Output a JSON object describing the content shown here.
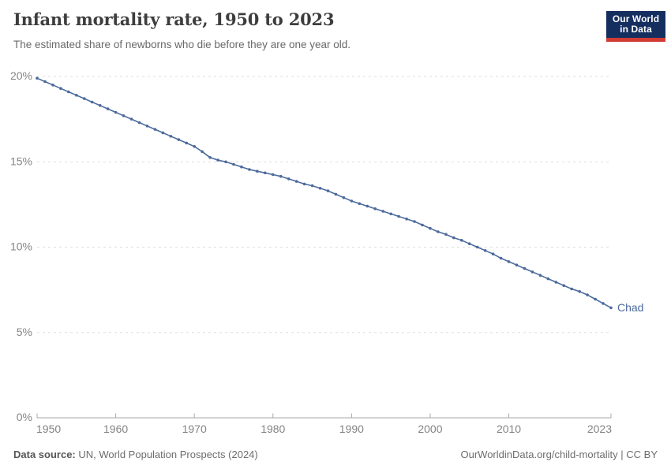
{
  "header": {
    "title": "Infant mortality rate, 1950 to 2023",
    "subtitle": "The estimated share of newborns who die before they are one year old."
  },
  "logo": {
    "line1": "Our World",
    "line2": "in Data",
    "bg_color": "#142e5f",
    "bar_color": "#d23b33"
  },
  "chart_data": {
    "type": "line",
    "title": "Infant mortality rate, 1950 to 2023",
    "xlabel": "",
    "ylabel": "",
    "ylim": [
      0,
      20
    ],
    "yticks": [
      0,
      5,
      10,
      15,
      20
    ],
    "ytick_format": "percent",
    "xticks": [
      1950,
      1960,
      1970,
      1980,
      1990,
      2000,
      2010,
      2023
    ],
    "grid": "horizontal-dashed",
    "legend_position": "end-of-line-label",
    "x": [
      1950,
      1951,
      1952,
      1953,
      1954,
      1955,
      1956,
      1957,
      1958,
      1959,
      1960,
      1961,
      1962,
      1963,
      1964,
      1965,
      1966,
      1967,
      1968,
      1969,
      1970,
      1971,
      1972,
      1973,
      1974,
      1975,
      1976,
      1977,
      1978,
      1979,
      1980,
      1981,
      1982,
      1983,
      1984,
      1985,
      1986,
      1987,
      1988,
      1989,
      1990,
      1991,
      1992,
      1993,
      1994,
      1995,
      1996,
      1997,
      1998,
      1999,
      2000,
      2001,
      2002,
      2003,
      2004,
      2005,
      2006,
      2007,
      2008,
      2009,
      2010,
      2011,
      2012,
      2013,
      2014,
      2015,
      2016,
      2017,
      2018,
      2019,
      2020,
      2021,
      2022,
      2023
    ],
    "series": [
      {
        "name": "Chad",
        "color": "#4C6A9C",
        "values": [
          19.9,
          19.7,
          19.5,
          19.3,
          19.1,
          18.9,
          18.7,
          18.5,
          18.3,
          18.1,
          17.9,
          17.7,
          17.5,
          17.3,
          17.1,
          16.9,
          16.7,
          16.5,
          16.3,
          16.1,
          15.9,
          15.6,
          15.25,
          15.1,
          15.0,
          14.85,
          14.7,
          14.55,
          14.45,
          14.35,
          14.25,
          14.15,
          14.0,
          13.85,
          13.7,
          13.6,
          13.45,
          13.3,
          13.1,
          12.9,
          12.7,
          12.55,
          12.4,
          12.25,
          12.1,
          11.95,
          11.8,
          11.65,
          11.5,
          11.3,
          11.1,
          10.9,
          10.75,
          10.55,
          10.4,
          10.2,
          10.0,
          9.8,
          9.6,
          9.35,
          9.15,
          8.95,
          8.75,
          8.55,
          8.35,
          8.15,
          7.95,
          7.75,
          7.55,
          7.4,
          7.2,
          6.95,
          6.7,
          6.45
        ]
      }
    ],
    "colors": {
      "gridline": "#dddddd",
      "axis": "#a8a8a8",
      "tick_label": "#858585"
    }
  },
  "footer": {
    "source_label": "Data source:",
    "source_text": " UN, World Population Prospects (2024)",
    "credit": "OurWorldinData.org/child-mortality | CC BY"
  }
}
